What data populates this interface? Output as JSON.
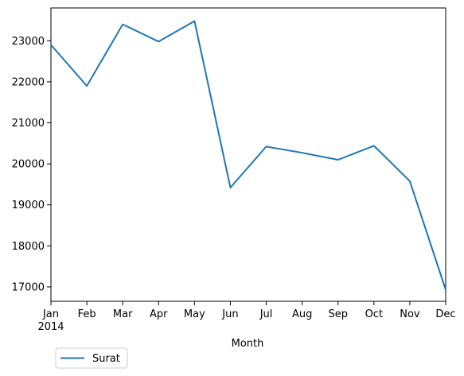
{
  "chart_data": {
    "type": "line",
    "title": "",
    "xlabel": "Month",
    "ylabel": "",
    "categories": [
      "Jan",
      "Feb",
      "Mar",
      "Apr",
      "May",
      "Jun",
      "Jul",
      "Aug",
      "Sep",
      "Oct",
      "Nov",
      "Dec"
    ],
    "year_label": "2014",
    "series": [
      {
        "name": "Surat",
        "color": "#1f77b4",
        "values": [
          22900,
          21900,
          23400,
          22980,
          23480,
          19420,
          20420,
          20270,
          20100,
          20440,
          19580,
          16930
        ]
      }
    ],
    "y_ticks": [
      17000,
      18000,
      19000,
      20000,
      21000,
      22000,
      23000
    ],
    "ylim": [
      16650,
      23800
    ],
    "grid": false,
    "legend_position": "lower-left-outside"
  }
}
